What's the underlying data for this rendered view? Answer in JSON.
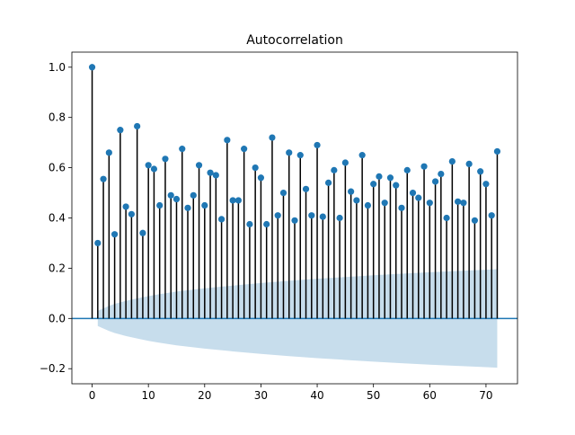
{
  "chart_data": {
    "type": "stem",
    "title": "Autocorrelation",
    "xlabel": "",
    "ylabel": "",
    "xlim": [
      -3.6,
      75.6
    ],
    "ylim": [
      -0.26,
      1.06
    ],
    "xticks": [
      "0",
      "10",
      "20",
      "30",
      "40",
      "50",
      "60",
      "70"
    ],
    "xtick_values": [
      0,
      10,
      20,
      30,
      40,
      50,
      60,
      70
    ],
    "yticks": [
      "−0.2",
      "0.0",
      "0.2",
      "0.4",
      "0.6",
      "0.8",
      "1.0"
    ],
    "ytick_values": [
      -0.2,
      0.0,
      0.2,
      0.4,
      0.6,
      0.8,
      1.0
    ],
    "grid": false,
    "lag": [
      0,
      1,
      2,
      3,
      4,
      5,
      6,
      7,
      8,
      9,
      10,
      11,
      12,
      13,
      14,
      15,
      16,
      17,
      18,
      19,
      20,
      21,
      22,
      23,
      24,
      25,
      26,
      27,
      28,
      29,
      30,
      31,
      32,
      33,
      34,
      35,
      36,
      37,
      38,
      39,
      40,
      41,
      42,
      43,
      44,
      45,
      46,
      47,
      48,
      49,
      50,
      51,
      52,
      53,
      54,
      55,
      56,
      57,
      58,
      59,
      60,
      61,
      62,
      63,
      64,
      65,
      66,
      67,
      68,
      69,
      70,
      71,
      72
    ],
    "acf": [
      1.0,
      0.3,
      0.555,
      0.66,
      0.335,
      0.75,
      0.445,
      0.415,
      0.765,
      0.34,
      0.61,
      0.595,
      0.45,
      0.635,
      0.49,
      0.475,
      0.675,
      0.44,
      0.49,
      0.61,
      0.45,
      0.58,
      0.57,
      0.395,
      0.71,
      0.47,
      0.47,
      0.675,
      0.375,
      0.6,
      0.56,
      0.375,
      0.72,
      0.41,
      0.5,
      0.66,
      0.39,
      0.65,
      0.515,
      0.41,
      0.69,
      0.405,
      0.54,
      0.59,
      0.4,
      0.62,
      0.505,
      0.47,
      0.65,
      0.45,
      0.535,
      0.565,
      0.46,
      0.56,
      0.53,
      0.44,
      0.59,
      0.5,
      0.48,
      0.605,
      0.46,
      0.545,
      0.575,
      0.4,
      0.625,
      0.465,
      0.46,
      0.615,
      0.39,
      0.585,
      0.535,
      0.41,
      0.665
    ],
    "confidence_band": {
      "lag": [
        1,
        2,
        3,
        4,
        6,
        8,
        10,
        12,
        15,
        20,
        25,
        30,
        35,
        40,
        45,
        50,
        55,
        60,
        65,
        70,
        72
      ],
      "upper": [
        0.03,
        0.04,
        0.05,
        0.058,
        0.07,
        0.08,
        0.089,
        0.097,
        0.107,
        0.12,
        0.131,
        0.141,
        0.15,
        0.158,
        0.165,
        0.172,
        0.178,
        0.184,
        0.189,
        0.194,
        0.196
      ],
      "lower": [
        -0.03,
        -0.04,
        -0.05,
        -0.058,
        -0.07,
        -0.08,
        -0.089,
        -0.097,
        -0.107,
        -0.12,
        -0.131,
        -0.141,
        -0.15,
        -0.158,
        -0.165,
        -0.172,
        -0.178,
        -0.184,
        -0.189,
        -0.194,
        -0.196
      ]
    },
    "colors": {
      "marker": "#1f77b4",
      "stem": "#000000",
      "zero_line": "#1f77b4",
      "band": "#1f77b4"
    }
  }
}
